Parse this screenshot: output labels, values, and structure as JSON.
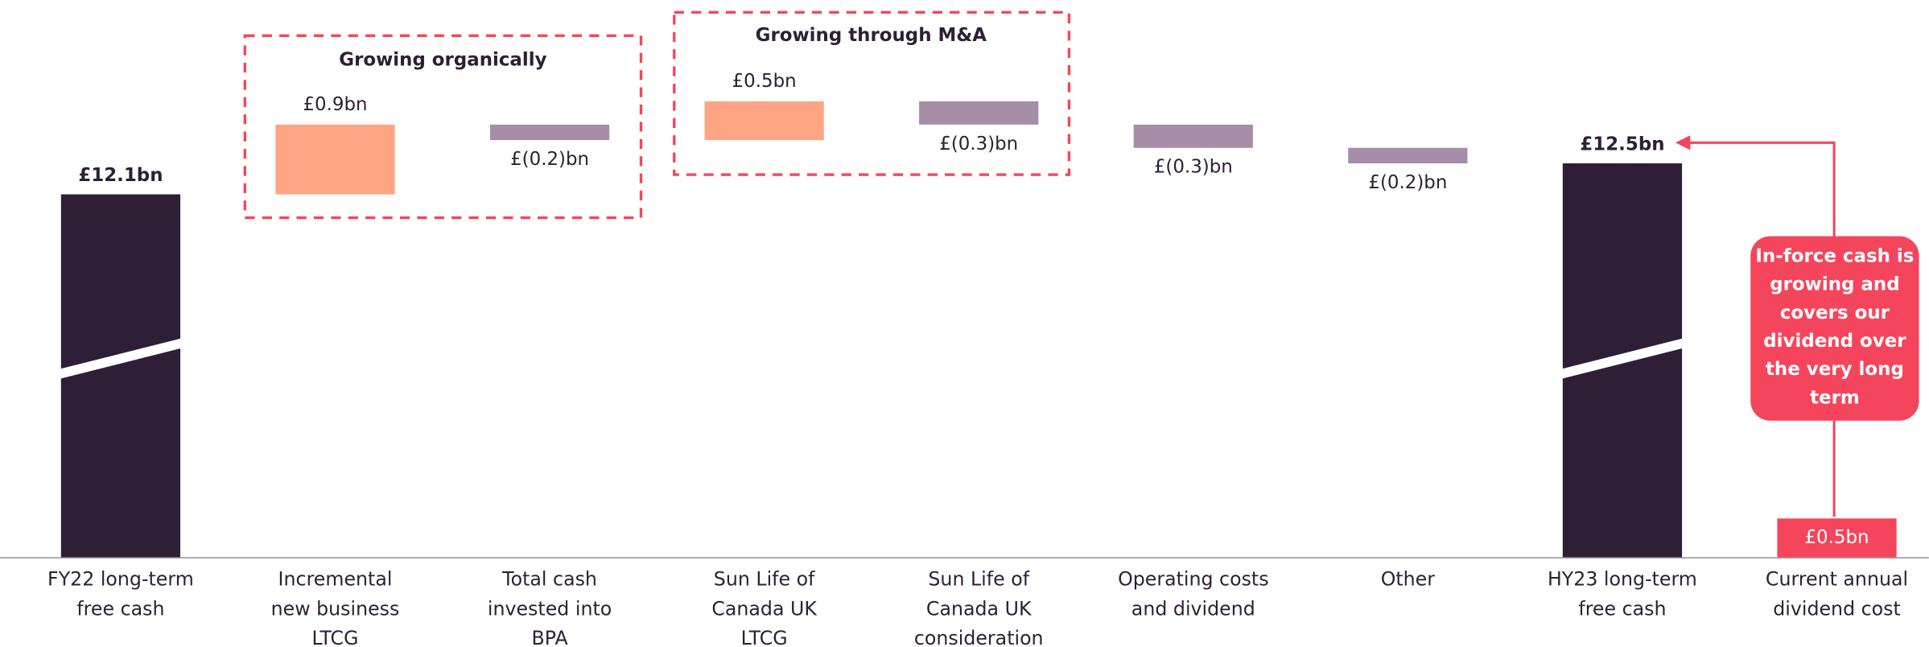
{
  "chart_data": {
    "type": "waterfall",
    "categories": [
      "FY22 long-term free cash",
      "Incremental new business LTCG",
      "Total cash invested into BPA",
      "Sun Life of Canada UK LTCG",
      "Sun Life of Canada UK consideration",
      "Operating costs and dividend",
      "Other",
      "HY23 long-term free cash",
      "Current annual dividend cost"
    ],
    "values": [
      12.1,
      0.9,
      -0.2,
      0.5,
      -0.3,
      -0.3,
      -0.2,
      12.5,
      0.5
    ],
    "value_labels": [
      "£12.1bn",
      "£0.9bn",
      "£(0.2)bn",
      "£0.5bn",
      "£(0.3)bn",
      "£(0.3)bn",
      "£(0.2)bn",
      "£12.5bn",
      "£0.5bn"
    ],
    "measure": [
      "absolute",
      "relative",
      "relative",
      "relative",
      "relative",
      "relative",
      "relative",
      "absolute",
      "reference"
    ],
    "colors": {
      "absolute": "#2e1f36",
      "increase": "#ffa584",
      "decrease": "#a78ea8",
      "reference": "#f5455c"
    },
    "groups": [
      "Growing organically",
      "Growing through M&A"
    ],
    "annotation": "In-force cash is growing and covers our dividend over the very long term"
  }
}
